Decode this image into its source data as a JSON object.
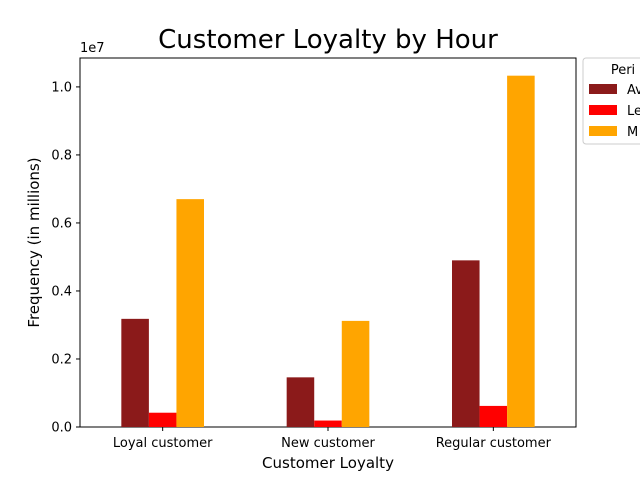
{
  "chart_data": {
    "type": "bar",
    "title": "Customer Loyalty by Hour",
    "xlabel": "Customer Loyalty",
    "ylabel": "Frequency (in millions)",
    "offset_label": "1e7",
    "categories": [
      "Loyal customer",
      "New customer",
      "Regular customer"
    ],
    "series": [
      {
        "name": "Av",
        "color": "#8b1a1a",
        "values": [
          3180000,
          1460000,
          4900000
        ]
      },
      {
        "name": "Le",
        "color": "#ff0000",
        "values": [
          420000,
          190000,
          620000
        ]
      },
      {
        "name": "M",
        "color": "#ffa500",
        "values": [
          6700000,
          3120000,
          10330000
        ]
      }
    ],
    "yticks": [
      0,
      2000000,
      4000000,
      6000000,
      8000000,
      10000000
    ],
    "ytick_labels": [
      "0.0",
      "0.2",
      "0.4",
      "0.6",
      "0.8",
      "1.0"
    ],
    "ylim": [
      0,
      10850000
    ],
    "legend": {
      "title": "Peri",
      "position": "outside-top-right"
    },
    "grid": false
  }
}
